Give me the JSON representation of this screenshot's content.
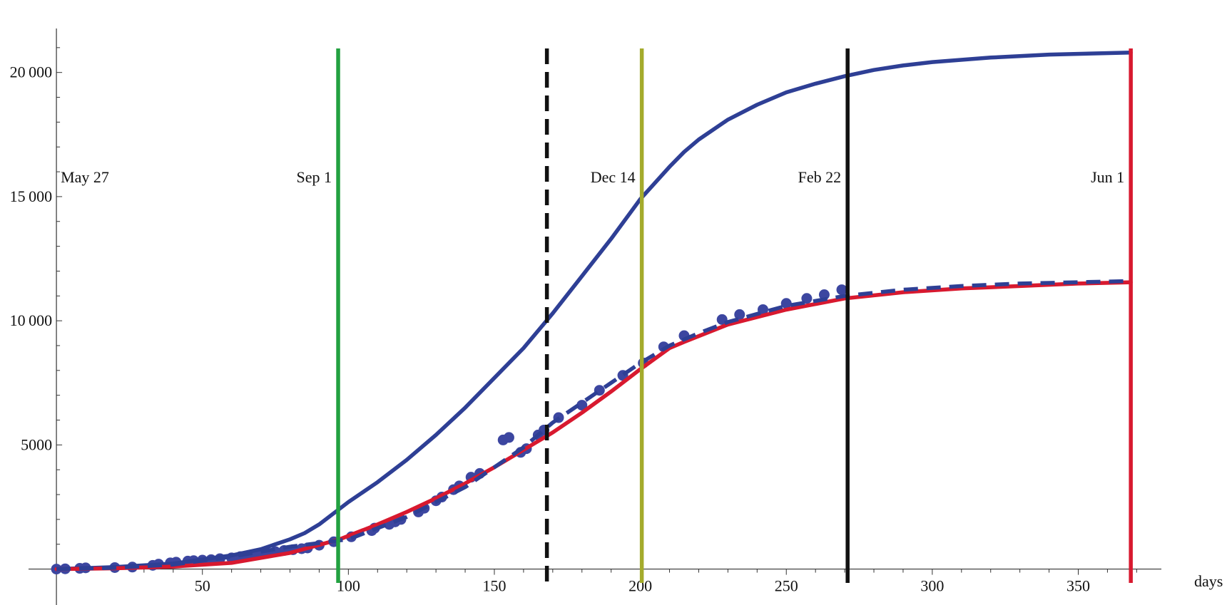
{
  "chart_data": {
    "type": "line",
    "title": "",
    "xlabel": "days",
    "ylabel": "",
    "xlim": [
      -1,
      377
    ],
    "ylim": [
      -500,
      22000
    ],
    "x_ticks": [
      50,
      100,
      150,
      200,
      250,
      300,
      350
    ],
    "x_tick_labels": [
      "50",
      "100",
      "150",
      "200",
      "250",
      "300",
      "350"
    ],
    "y_ticks": [
      5000,
      10000,
      15000,
      20000
    ],
    "y_tick_labels": [
      "5000",
      "10 000",
      "15 000",
      "20 000"
    ],
    "grid": false,
    "legend": "none",
    "series": [
      {
        "style": "solid",
        "color": "#2e3f95",
        "x": [
          0,
          20,
          40,
          60,
          70,
          80,
          85,
          90,
          100,
          110,
          120,
          130,
          140,
          150,
          160,
          170,
          180,
          190,
          200,
          210,
          215,
          220,
          230,
          240,
          250,
          260,
          270,
          280,
          290,
          300,
          320,
          340,
          368
        ],
        "y": [
          0,
          80,
          220,
          550,
          800,
          1200,
          1450,
          1800,
          2700,
          3500,
          4400,
          5400,
          6500,
          7700,
          8900,
          10300,
          11800,
          13300,
          14900,
          16200,
          16800,
          17300,
          18100,
          18700,
          19200,
          19550,
          19850,
          20100,
          20280,
          20420,
          20600,
          20720,
          20800
        ]
      },
      {
        "style": "solid",
        "color": "#d8192f",
        "x": [
          0,
          20,
          40,
          60,
          80,
          97,
          110,
          120,
          130,
          140,
          150,
          160,
          170,
          180,
          190,
          200,
          210,
          215,
          230,
          250,
          270,
          290,
          310,
          330,
          350,
          368
        ],
        "y": [
          0,
          30,
          100,
          250,
          650,
          1200,
          1800,
          2300,
          2850,
          3450,
          4100,
          4800,
          5500,
          6300,
          7150,
          8050,
          8900,
          9150,
          9850,
          10450,
          10900,
          11150,
          11300,
          11400,
          11500,
          11550
        ]
      },
      {
        "style": "dashed",
        "color": "#2e3f95",
        "x": [
          0,
          20,
          40,
          60,
          80,
          100,
          120,
          140,
          160,
          170,
          180,
          190,
          200,
          210,
          220,
          230,
          250,
          270,
          290,
          310,
          330,
          350,
          368
        ],
        "y": [
          0,
          50,
          180,
          500,
          900,
          1200,
          2100,
          3300,
          4900,
          5900,
          6700,
          7500,
          8300,
          9000,
          9500,
          9950,
          10600,
          11000,
          11250,
          11400,
          11500,
          11550,
          11600
        ]
      }
    ],
    "points": {
      "color": "#3c46a0",
      "x": [
        0,
        3,
        8,
        10,
        20,
        26,
        33,
        35,
        39,
        41,
        45,
        47,
        50,
        53,
        56,
        60,
        63,
        66,
        69,
        72,
        75,
        78,
        81,
        84,
        86,
        90,
        95,
        101,
        108,
        109,
        114,
        116,
        118,
        124,
        126,
        130,
        132,
        136,
        138,
        142,
        145,
        153,
        155,
        159,
        161,
        165,
        167,
        172,
        180,
        186,
        194,
        201,
        208,
        215,
        228,
        234,
        242,
        250,
        257,
        263,
        269
      ],
      "y": [
        0,
        10,
        30,
        50,
        60,
        80,
        150,
        200,
        250,
        280,
        320,
        340,
        360,
        380,
        420,
        450,
        500,
        550,
        600,
        650,
        700,
        750,
        780,
        820,
        850,
        960,
        1100,
        1300,
        1550,
        1650,
        1800,
        1900,
        2000,
        2300,
        2450,
        2750,
        2900,
        3200,
        3350,
        3700,
        3850,
        5200,
        5300,
        4700,
        4850,
        5400,
        5600,
        6100,
        6600,
        7200,
        7800,
        8300,
        8950,
        9400,
        10050,
        10250,
        10450,
        10700,
        10900,
        11050,
        11250
      ]
    },
    "events": [
      {
        "label": "May 27",
        "x": 0,
        "color": "none",
        "style": "none"
      },
      {
        "label": "Sep 1",
        "x": 96.5,
        "color": "#22a140",
        "style": "solid"
      },
      {
        "label": "",
        "x": 168,
        "color": "#111111",
        "style": "dashed"
      },
      {
        "label": "Dec 14",
        "x": 200.5,
        "color": "#a4ab2c",
        "style": "solid"
      },
      {
        "label": "Feb 22",
        "x": 271,
        "color": "#111111",
        "style": "solid"
      },
      {
        "label": "Jun 1",
        "x": 368,
        "color": "#d8192f",
        "style": "solid"
      }
    ]
  }
}
